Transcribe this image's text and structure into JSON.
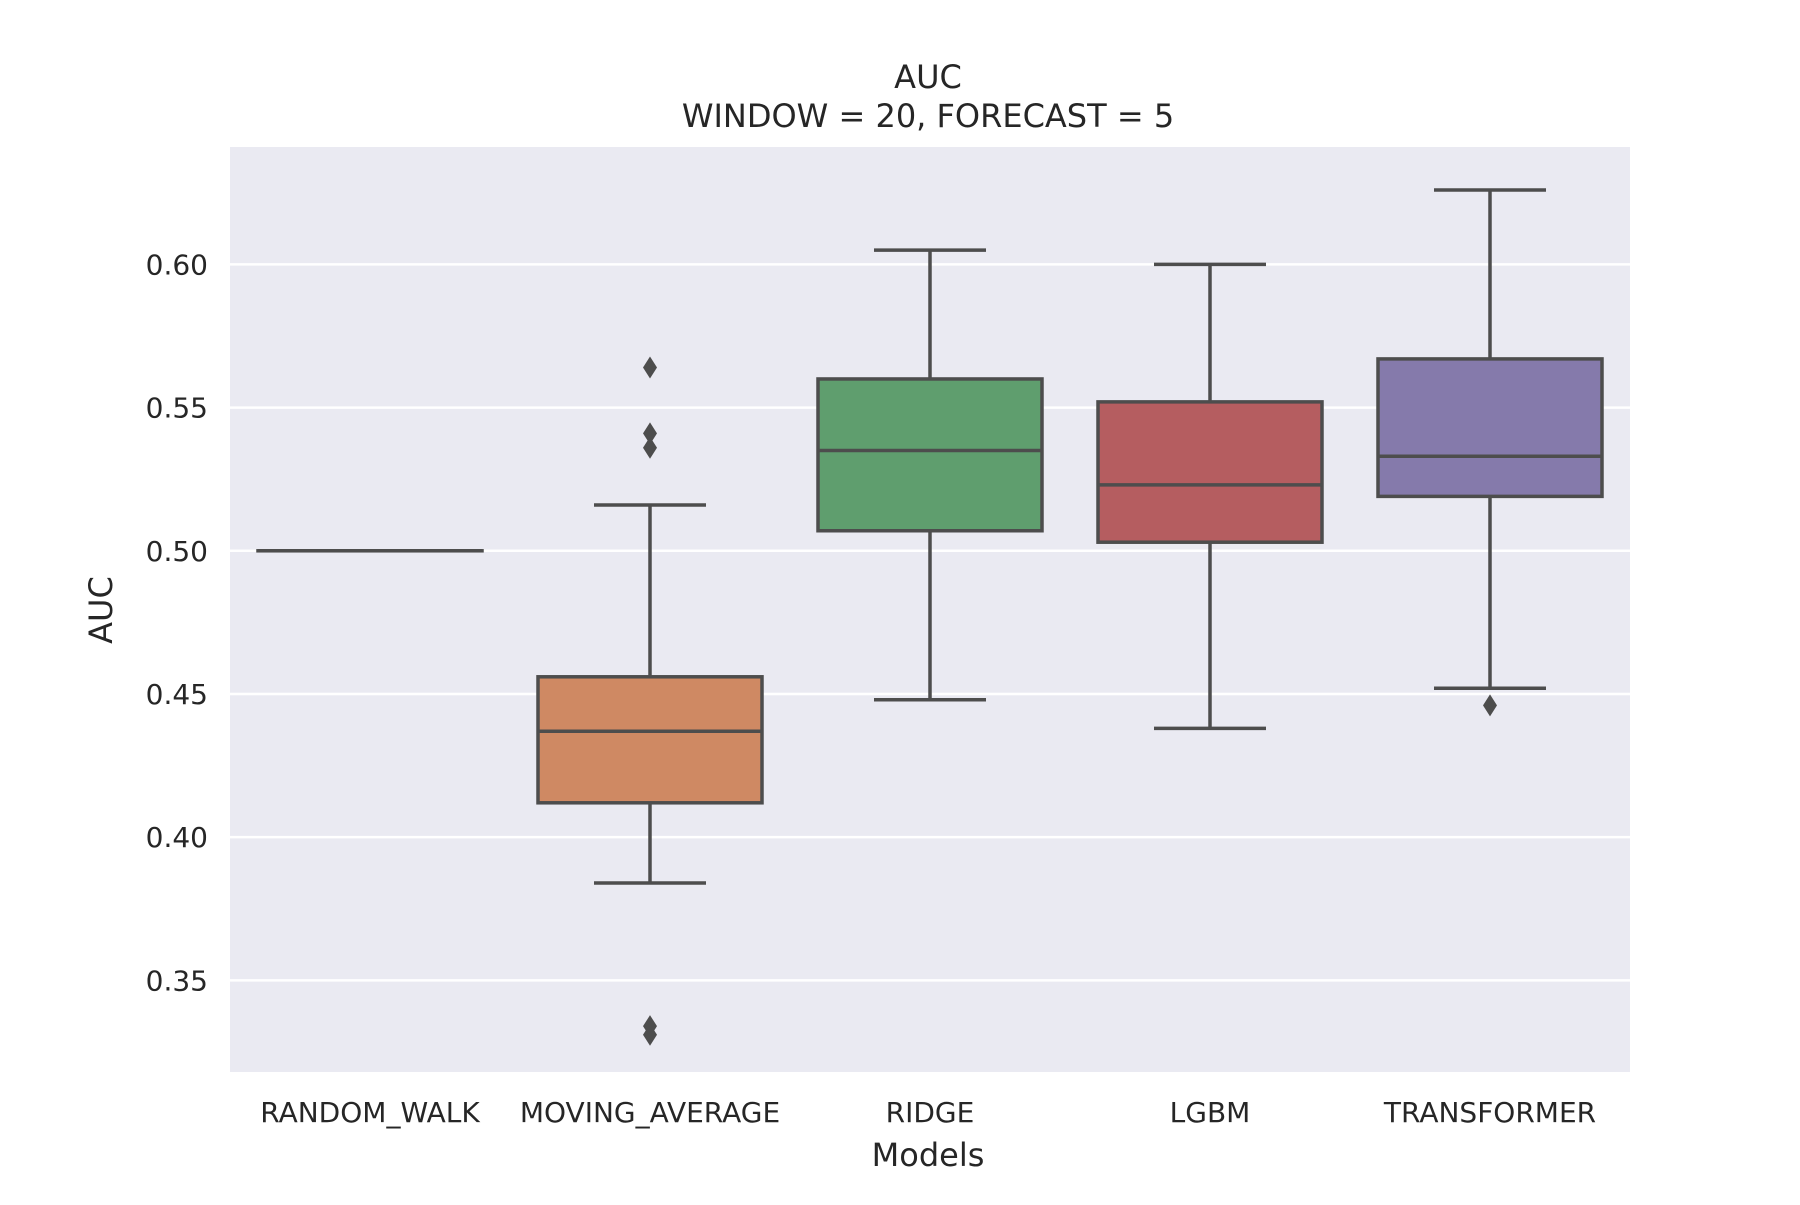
{
  "chart_data": {
    "type": "box",
    "title": "AUC",
    "subtitle": "WINDOW = 20, FORECAST = 5",
    "xlabel": "Models",
    "ylabel": "AUC",
    "ylim": [
      0.318,
      0.641
    ],
    "yticks": [
      "0.35",
      "0.40",
      "0.45",
      "0.50",
      "0.55",
      "0.60"
    ],
    "grid": true,
    "legend": "none",
    "background_color": "#eaeaf2",
    "line_color": "#4d4d4d",
    "categories": [
      "RANDOM_WALK",
      "MOVING_AVERAGE",
      "RIDGE",
      "LGBM",
      "TRANSFORMER"
    ],
    "boxes": [
      {
        "category": "RANDOM_WALK",
        "color": "#4c72b0",
        "whisker_low": 0.5,
        "q1": 0.5,
        "median": 0.5,
        "q3": 0.5,
        "whisker_high": 0.5,
        "outliers": []
      },
      {
        "category": "MOVING_AVERAGE",
        "color": "#cf8963",
        "whisker_low": 0.384,
        "q1": 0.412,
        "median": 0.437,
        "q3": 0.456,
        "whisker_high": 0.516,
        "outliers": [
          0.564,
          0.541,
          0.536,
          0.334,
          0.331
        ]
      },
      {
        "category": "RIDGE",
        "color": "#5f9e6e",
        "whisker_low": 0.448,
        "q1": 0.507,
        "median": 0.535,
        "q3": 0.56,
        "whisker_high": 0.605,
        "outliers": []
      },
      {
        "category": "LGBM",
        "color": "#b55d60",
        "whisker_low": 0.438,
        "q1": 0.503,
        "median": 0.523,
        "q3": 0.552,
        "whisker_high": 0.6,
        "outliers": []
      },
      {
        "category": "TRANSFORMER",
        "color": "#857aab",
        "whisker_low": 0.452,
        "q1": 0.519,
        "median": 0.533,
        "q3": 0.567,
        "whisker_high": 0.626,
        "outliers": [
          0.446
        ]
      }
    ]
  }
}
